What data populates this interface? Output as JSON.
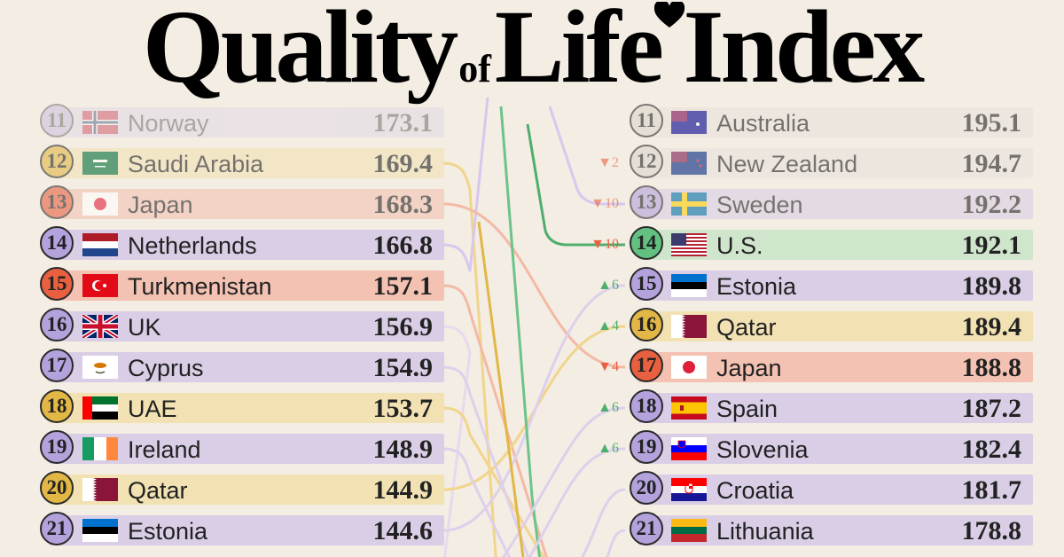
{
  "title": {
    "part1": "Quality",
    "part2": "of",
    "part3": "Life Index",
    "heart_icon": "heart-icon"
  },
  "colors": {
    "purple": "#d9cee6",
    "purple_circle": "#b3a2dc",
    "yellow": "#f2e2b3",
    "yellow_circle": "#e2b746",
    "red": "#f4c2b2",
    "red_circle": "#e8603f",
    "green": "#cfe6cd",
    "green_circle": "#62c081",
    "grey": "#e9e3dc",
    "grey_circle": "#dcd5cc",
    "up": "#4fae6e",
    "down": "#e8603f"
  },
  "chart_data": {
    "type": "table",
    "columns": [
      {
        "rows": [
          {
            "rank": "11",
            "country": "Norway",
            "value": "173.1",
            "color": "purple",
            "flag": "norway"
          },
          {
            "rank": "12",
            "country": "Saudi Arabia",
            "value": "169.4",
            "color": "yellow",
            "flag": "saudi"
          },
          {
            "rank": "13",
            "country": "Japan",
            "value": "168.3",
            "color": "red",
            "flag": "japan"
          },
          {
            "rank": "14",
            "country": "Netherlands",
            "value": "166.8",
            "color": "purple",
            "flag": "netherlands"
          },
          {
            "rank": "15",
            "country": "Turkmenistan",
            "value": "157.1",
            "color": "red",
            "flag": "turkmenistan"
          },
          {
            "rank": "16",
            "country": "UK",
            "value": "156.9",
            "color": "purple",
            "flag": "uk"
          },
          {
            "rank": "17",
            "country": "Cyprus",
            "value": "154.9",
            "color": "purple",
            "flag": "cyprus"
          },
          {
            "rank": "18",
            "country": "UAE",
            "value": "153.7",
            "color": "yellow",
            "flag": "uae"
          },
          {
            "rank": "19",
            "country": "Ireland",
            "value": "148.9",
            "color": "purple",
            "flag": "ireland"
          },
          {
            "rank": "20",
            "country": "Qatar",
            "value": "144.9",
            "color": "yellow",
            "flag": "qatar"
          },
          {
            "rank": "21",
            "country": "Estonia",
            "value": "144.6",
            "color": "purple",
            "flag": "estonia"
          }
        ]
      },
      {
        "rows": [
          {
            "rank": "11",
            "country": "Australia",
            "value": "195.1",
            "color": "grey",
            "flag": "australia",
            "change": ""
          },
          {
            "rank": "12",
            "country": "New Zealand",
            "value": "194.7",
            "color": "grey",
            "flag": "newzealand",
            "change": "▼2",
            "dir": "down"
          },
          {
            "rank": "13",
            "country": "Sweden",
            "value": "192.2",
            "color": "purple",
            "flag": "sweden",
            "change": "▼10",
            "dir": "down"
          },
          {
            "rank": "14",
            "country": "U.S.",
            "value": "192.1",
            "color": "green",
            "flag": "us",
            "change": "▼10",
            "dir": "down"
          },
          {
            "rank": "15",
            "country": "Estonia",
            "value": "189.8",
            "color": "purple",
            "flag": "estonia",
            "change": "▲6",
            "dir": "up"
          },
          {
            "rank": "16",
            "country": "Qatar",
            "value": "189.4",
            "color": "yellow",
            "flag": "qatar",
            "change": "▲4",
            "dir": "up"
          },
          {
            "rank": "17",
            "country": "Japan",
            "value": "188.8",
            "color": "red",
            "flag": "japan",
            "change": "▼4",
            "dir": "down"
          },
          {
            "rank": "18",
            "country": "Spain",
            "value": "187.2",
            "color": "purple",
            "flag": "spain",
            "change": "▲6",
            "dir": "up"
          },
          {
            "rank": "19",
            "country": "Slovenia",
            "value": "182.4",
            "color": "purple",
            "flag": "slovenia",
            "change": "▲6",
            "dir": "up"
          },
          {
            "rank": "20",
            "country": "Croatia",
            "value": "181.7",
            "color": "purple",
            "flag": "croatia",
            "change": ""
          },
          {
            "rank": "21",
            "country": "Lithuania",
            "value": "178.8",
            "color": "purple",
            "flag": "lithuania",
            "change": ""
          }
        ]
      }
    ]
  }
}
